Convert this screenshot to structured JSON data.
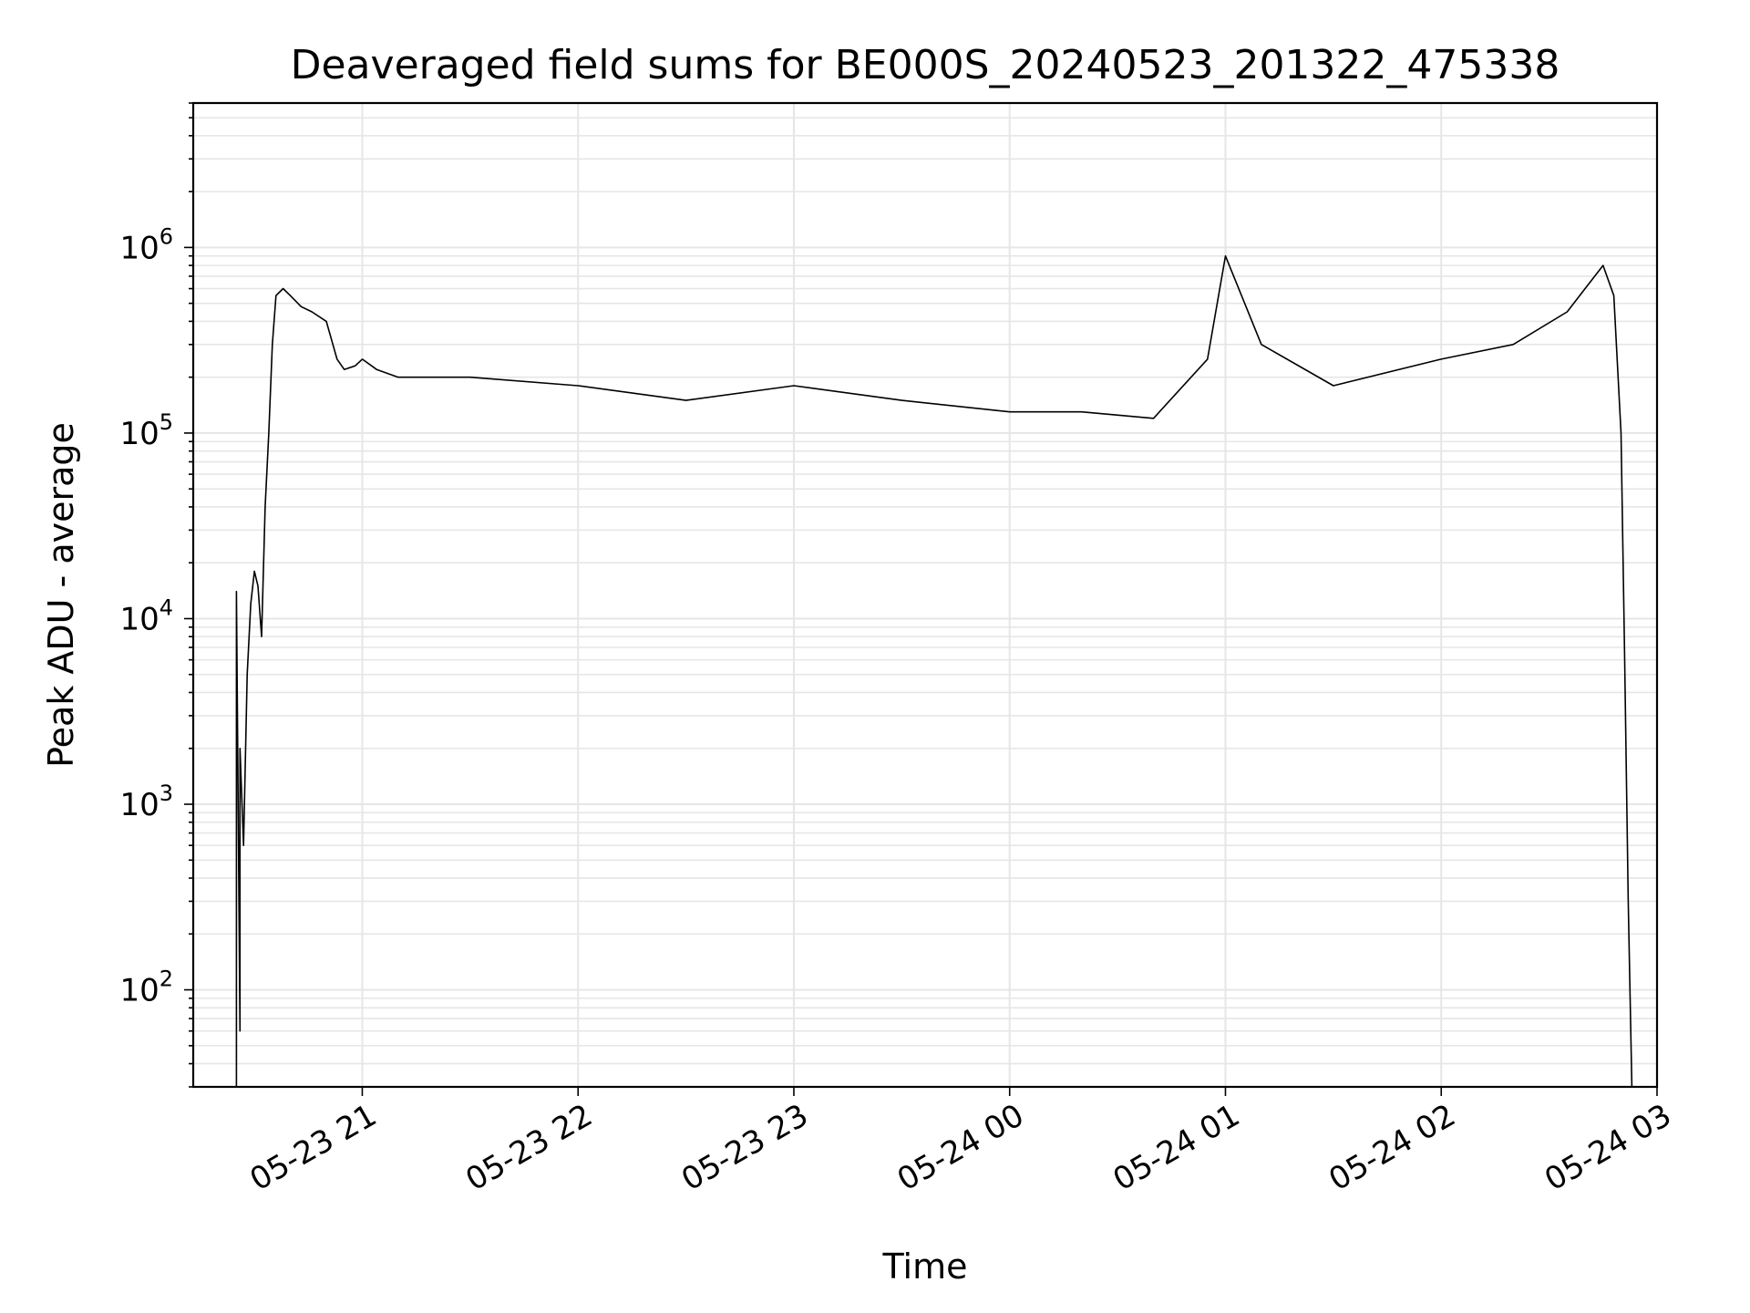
{
  "chart_data": {
    "type": "line",
    "title": "Deaveraged field sums for BE000S_20240523_201322_475338",
    "xlabel": "Time",
    "ylabel": "Peak ADU - average",
    "y_scale": "log",
    "grid": true,
    "legend": "none",
    "line_color": "#000000",
    "grid_color": "#e6e6e6",
    "xlim": [
      "2024-05-23 20:13",
      "2024-05-24 03:00"
    ],
    "ylim": [
      30,
      6000000
    ],
    "x_ticks": [
      {
        "value": "2024-05-23 21:00",
        "label": "05-23 21"
      },
      {
        "value": "2024-05-23 22:00",
        "label": "05-23 22"
      },
      {
        "value": "2024-05-23 23:00",
        "label": "05-23 23"
      },
      {
        "value": "2024-05-24 00:00",
        "label": "05-24 00"
      },
      {
        "value": "2024-05-24 01:00",
        "label": "05-24 01"
      },
      {
        "value": "2024-05-24 02:00",
        "label": "05-24 02"
      },
      {
        "value": "2024-05-24 03:00",
        "label": "05-24 03"
      }
    ],
    "y_ticks": [
      {
        "value": 100,
        "base": "10",
        "exp": "2"
      },
      {
        "value": 1000,
        "base": "10",
        "exp": "3"
      },
      {
        "value": 10000,
        "base": "10",
        "exp": "4"
      },
      {
        "value": 100000,
        "base": "10",
        "exp": "5"
      },
      {
        "value": 1000000,
        "base": "10",
        "exp": "6"
      }
    ],
    "series": [
      {
        "x": [
          "2024-05-23 20:25",
          "2024-05-23 20:25",
          "2024-05-23 20:26",
          "2024-05-23 20:26",
          "2024-05-23 20:27",
          "2024-05-23 20:28",
          "2024-05-23 20:29",
          "2024-05-23 20:30",
          "2024-05-23 20:31",
          "2024-05-23 20:32",
          "2024-05-23 20:33",
          "2024-05-23 20:34",
          "2024-05-23 20:35",
          "2024-05-23 20:36",
          "2024-05-23 20:38",
          "2024-05-23 20:40",
          "2024-05-23 20:43",
          "2024-05-23 20:46",
          "2024-05-23 20:50",
          "2024-05-23 20:53",
          "2024-05-23 20:55",
          "2024-05-23 20:58",
          "2024-05-23 21:00",
          "2024-05-23 21:04",
          "2024-05-23 21:10",
          "2024-05-23 21:30",
          "2024-05-23 22:00",
          "2024-05-23 22:30",
          "2024-05-23 23:00",
          "2024-05-23 23:30",
          "2024-05-24 00:00",
          "2024-05-24 00:20",
          "2024-05-24 00:40",
          "2024-05-24 00:55",
          "2024-05-24 01:00",
          "2024-05-24 01:10",
          "2024-05-24 01:30",
          "2024-05-24 02:00",
          "2024-05-24 02:20",
          "2024-05-24 02:35",
          "2024-05-24 02:40",
          "2024-05-24 02:45",
          "2024-05-24 02:48",
          "2024-05-24 02:50",
          "2024-05-24 02:51",
          "2024-05-24 02:52",
          "2024-05-24 02:53"
        ],
        "values": [
          30,
          14000,
          60,
          2000,
          600,
          5000,
          12000,
          18000,
          15000,
          8000,
          40000,
          100000,
          300000,
          550000,
          600000,
          550000,
          480000,
          450000,
          400000,
          250000,
          220000,
          230000,
          250000,
          220000,
          200000,
          200000,
          180000,
          150000,
          180000,
          150000,
          130000,
          130000,
          120000,
          250000,
          900000,
          300000,
          180000,
          250000,
          300000,
          450000,
          600000,
          800000,
          550000,
          100000,
          6000,
          300,
          30
        ]
      }
    ]
  }
}
